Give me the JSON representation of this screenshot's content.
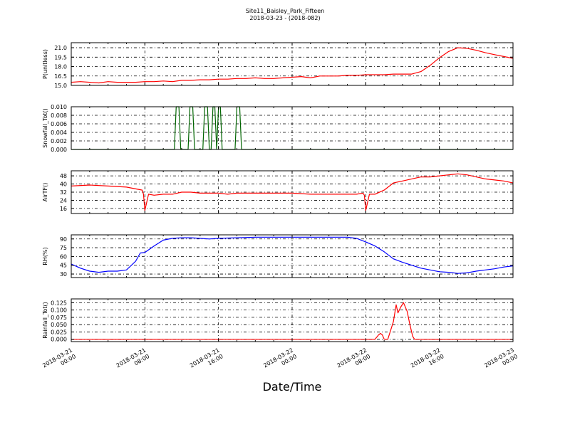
{
  "title": "Site11_Baisley_Park_Fifteen",
  "subtitle": "2018-03-23 - (2018-082)",
  "xlabel": "Date/Time",
  "chart_data": {
    "type": "line",
    "x_ticks": [
      "2018-03-21 00:00",
      "2018-03-21 08:00",
      "2018-03-21 16:00",
      "2018-03-22 00:00",
      "2018-03-22 08:00",
      "2018-03-22 16:00",
      "2018-03-23 00:00"
    ],
    "x_tick_lines": [
      [
        "2018-03-21",
        "00:00"
      ],
      [
        "2018-03-21",
        "08:00"
      ],
      [
        "2018-03-21",
        "16:00"
      ],
      [
        "2018-03-22",
        "00:00"
      ],
      [
        "2018-03-22",
        "08:00"
      ],
      [
        "2018-03-22",
        "16:00"
      ],
      [
        "2018-03-23",
        "00:00"
      ]
    ],
    "x_range_hours": [
      0,
      48
    ],
    "grid": true,
    "panels": [
      {
        "ylabel": "P(unitless)",
        "color": "#ff0000",
        "ylim": [
          15.0,
          21.8
        ],
        "yticks": [
          "15.0",
          "16.5",
          "18.0",
          "19.5",
          "21.0"
        ],
        "x": [
          0,
          1,
          2,
          3,
          4,
          5,
          6,
          7,
          8,
          9,
          10,
          11,
          12,
          13,
          14,
          15,
          16,
          17,
          18,
          19,
          20,
          21,
          22,
          23,
          24,
          25,
          26,
          27,
          28,
          29,
          30,
          31,
          32,
          33,
          34,
          35,
          36,
          37,
          38,
          39,
          40,
          41,
          42,
          43,
          44,
          45,
          46,
          47,
          48
        ],
        "values": [
          15.5,
          15.6,
          15.5,
          15.4,
          15.6,
          15.5,
          15.5,
          15.5,
          15.6,
          15.6,
          15.7,
          15.6,
          15.8,
          15.8,
          15.9,
          15.9,
          16.0,
          16.0,
          16.1,
          16.1,
          16.2,
          16.1,
          16.1,
          16.2,
          16.3,
          16.4,
          16.2,
          16.5,
          16.5,
          16.5,
          16.6,
          16.6,
          16.7,
          16.7,
          16.7,
          16.8,
          16.8,
          16.8,
          17.2,
          18.2,
          19.4,
          20.4,
          21.0,
          20.9,
          20.6,
          20.2,
          19.9,
          19.6,
          19.3
        ]
      },
      {
        "ylabel": "Snowfall_Tot()",
        "color": "#006400",
        "ylim": [
          0.0,
          0.01
        ],
        "yticks": [
          "0.000",
          "0.002",
          "0.004",
          "0.006",
          "0.008",
          "0.010"
        ],
        "x": [
          0,
          11.2,
          11.4,
          11.7,
          11.9,
          12.7,
          12.9,
          13.2,
          13.4,
          14.3,
          14.5,
          14.8,
          15.0,
          15.2,
          15.4,
          15.6,
          15.8,
          16.0,
          16.2,
          16.4,
          16.6,
          16.8,
          17.8,
          18.0,
          18.3,
          18.5,
          48
        ],
        "values": [
          0,
          0,
          0.01,
          0.01,
          0,
          0,
          0.01,
          0.01,
          0,
          0,
          0.01,
          0.01,
          0,
          0,
          0.01,
          0.01,
          0,
          0.01,
          0.01,
          0,
          0,
          0,
          0,
          0.01,
          0.01,
          0,
          0
        ]
      },
      {
        "ylabel": "AirTF()",
        "color": "#ff0000",
        "ylim": [
          11,
          53
        ],
        "yticks": [
          "16",
          "24",
          "32",
          "40",
          "48"
        ],
        "x": [
          0,
          2,
          4,
          6,
          7.7,
          7.85,
          8.0,
          8.4,
          9,
          10,
          11,
          12,
          13,
          14,
          15,
          16,
          17,
          18,
          20,
          22,
          24,
          26,
          28,
          31,
          31.7,
          31.85,
          32.0,
          32.4,
          33,
          34,
          35,
          36,
          37,
          38,
          39,
          40,
          41,
          42,
          43,
          44,
          45,
          46,
          47,
          48
        ],
        "values": [
          38,
          39,
          38,
          37,
          34,
          30,
          14,
          30,
          29,
          30,
          30,
          32,
          32,
          31,
          31,
          31,
          30,
          31,
          31,
          31,
          31,
          30,
          30,
          30,
          31,
          29,
          14,
          30,
          30,
          34,
          41,
          43,
          45,
          47,
          47,
          48,
          49,
          50,
          49,
          47,
          45,
          44,
          43,
          41
        ]
      },
      {
        "ylabel": "RH(%)",
        "color": "#0000ff",
        "ylim": [
          24,
          97
        ],
        "yticks": [
          "30",
          "45",
          "60",
          "75",
          "90"
        ],
        "x": [
          0,
          1,
          2,
          3,
          4,
          5,
          6,
          7,
          7.5,
          8,
          9,
          10,
          11,
          12,
          13,
          14,
          15,
          16,
          18,
          20,
          22,
          24,
          26,
          28,
          30,
          31,
          32,
          33,
          34,
          35,
          36,
          37,
          38,
          39,
          40,
          41,
          42,
          43,
          44,
          45,
          46,
          47,
          48
        ],
        "values": [
          47,
          40,
          35,
          33,
          35,
          35,
          37,
          52,
          66,
          67,
          78,
          88,
          91,
          92,
          92,
          91,
          90,
          91,
          92,
          93,
          93,
          93,
          93,
          93,
          93,
          91,
          85,
          78,
          68,
          56,
          50,
          45,
          40,
          37,
          34,
          33,
          31,
          32,
          35,
          37,
          39,
          42,
          44
        ]
      },
      {
        "ylabel": "Rainfall_Tot()",
        "color": "#ff0000",
        "ylim": [
          -0.008,
          0.138
        ],
        "yticks": [
          "0.000",
          "0.025",
          "0.050",
          "0.075",
          "0.100",
          "0.125"
        ],
        "x": [
          0,
          33.0,
          33.4,
          33.6,
          33.8,
          34.0,
          34.4,
          35.0,
          35.3,
          35.5,
          35.8,
          36.1,
          36.5,
          36.8,
          37.1,
          37.3,
          48
        ],
        "values": [
          0,
          0,
          0.015,
          0.02,
          0.015,
          0,
          0,
          0.06,
          0.118,
          0.09,
          0.11,
          0.125,
          0.095,
          0.05,
          0.01,
          0,
          0
        ]
      }
    ]
  }
}
